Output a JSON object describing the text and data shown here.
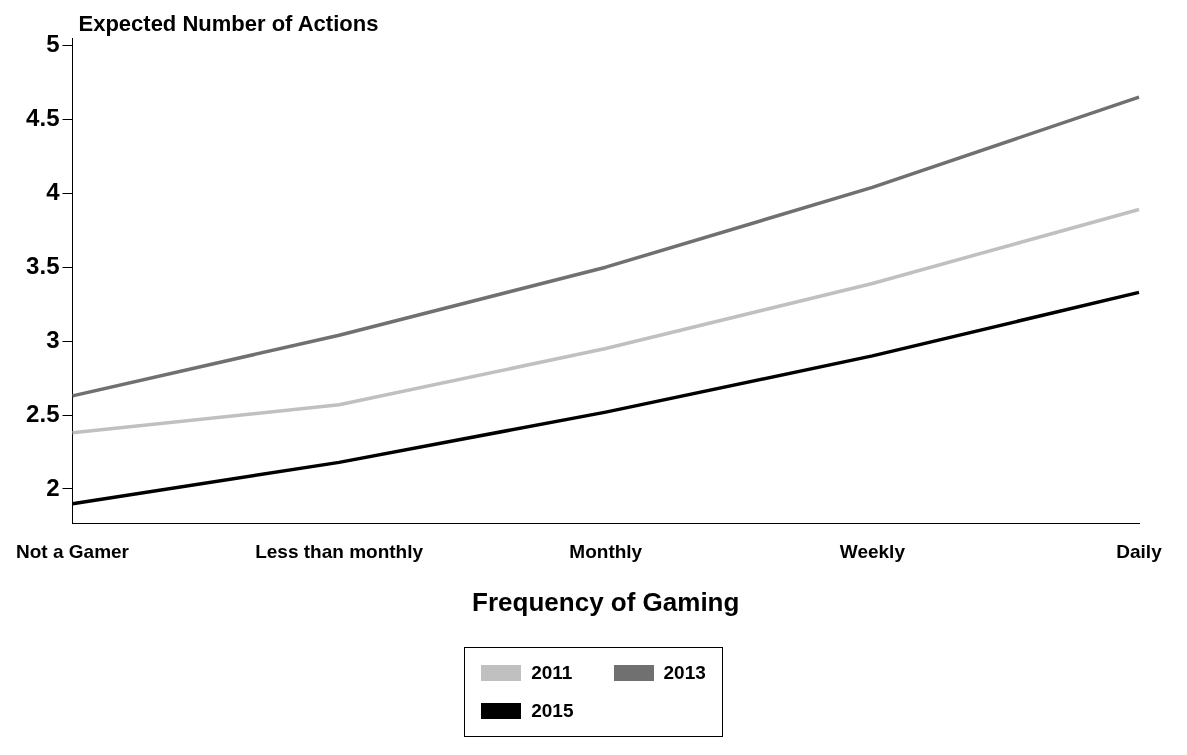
{
  "chart_data": {
    "type": "line",
    "ylabel": "Expected Number of Actions",
    "xlabel": "Frequency of Gaming",
    "categories": [
      "Not a Gamer",
      "Less than monthly",
      "Monthly",
      "Weekly",
      "Daily"
    ],
    "series": [
      {
        "name": "2011",
        "color": "#c0c0c0",
        "values": [
          2.38,
          2.57,
          2.95,
          3.39,
          3.89
        ]
      },
      {
        "name": "2013",
        "color": "#707070",
        "values": [
          2.63,
          3.04,
          3.5,
          4.04,
          4.65
        ]
      },
      {
        "name": "2015",
        "color": "#000000",
        "values": [
          1.9,
          2.18,
          2.52,
          2.9,
          3.33
        ]
      }
    ],
    "ylim": [
      1.77,
      5.05
    ],
    "yticks": [
      2,
      2.5,
      3,
      3.5,
      4,
      4.5,
      5
    ],
    "grid": false,
    "legend": "bottom",
    "marker": "none",
    "line_style": "solid"
  }
}
